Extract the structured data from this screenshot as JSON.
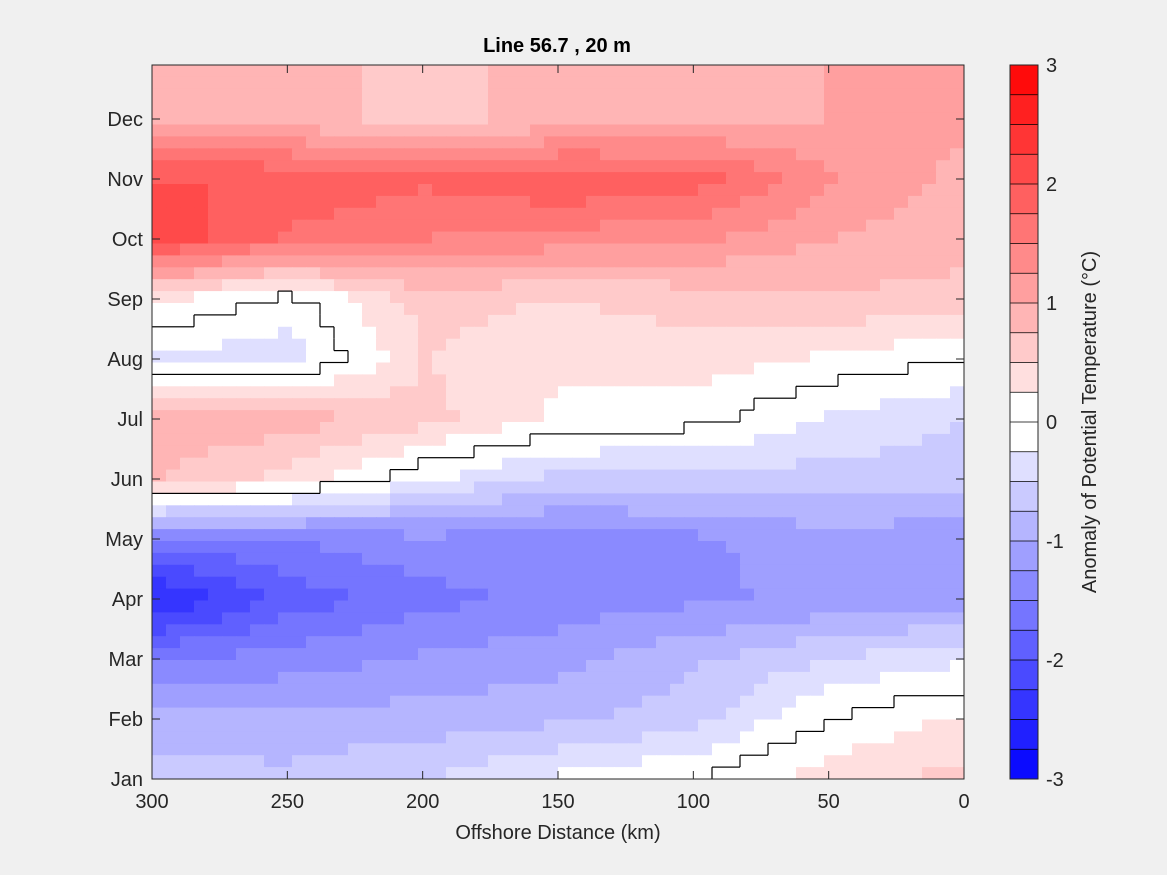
{
  "chart_data": {
    "type": "heatmap",
    "subtype": "filled-contour",
    "title": "Line 56.7 , 20 m",
    "xlabel": "Offshore Distance (km)",
    "ylabel": "",
    "x_reversed": true,
    "xlim": [
      0,
      300
    ],
    "x_ticks": [
      300,
      250,
      200,
      150,
      100,
      50,
      0
    ],
    "y_ticks": [
      "Jan",
      "Feb",
      "Mar",
      "Apr",
      "May",
      "Jun",
      "Jul",
      "Aug",
      "Sep",
      "Oct",
      "Nov",
      "Dec"
    ],
    "colorbar": {
      "label": "Anomaly of Potential Temperature (°C)",
      "range": [
        -3,
        3
      ],
      "step": 0.25,
      "ticks": [
        3,
        2,
        1,
        0,
        -1,
        -2,
        -3
      ],
      "color_negative": "#0000ff",
      "color_zero": "#ffffff",
      "color_positive": "#ff0000"
    },
    "zero_contour": true,
    "x": [
      300,
      250,
      200,
      150,
      100,
      50,
      0
    ],
    "months": [
      "Jan",
      "Feb",
      "Mar",
      "Apr",
      "May",
      "Jun",
      "Jul",
      "Aug",
      "Sep",
      "Oct",
      "Nov",
      "Dec"
    ],
    "z": [
      [
        -0.6,
        -0.7,
        -0.5,
        -0.2,
        0.0,
        0.4,
        0.6
      ],
      [
        -0.9,
        -0.9,
        -0.9,
        -0.8,
        -0.6,
        0.0,
        0.3
      ],
      [
        -1.5,
        -1.4,
        -1.2,
        -1.1,
        -0.8,
        -0.5,
        -0.3
      ],
      [
        -2.6,
        -1.9,
        -1.6,
        -1.4,
        -1.3,
        -1.2,
        -1.1
      ],
      [
        -1.6,
        -1.5,
        -1.3,
        -1.4,
        -1.3,
        -1.1,
        -1.2
      ],
      [
        0.8,
        0.4,
        -0.2,
        -0.6,
        -0.6,
        -0.6,
        -0.6
      ],
      [
        0.9,
        0.9,
        0.6,
        0.2,
        0.1,
        -0.3,
        -0.5
      ],
      [
        -0.3,
        -0.4,
        0.5,
        0.3,
        0.4,
        0.2,
        0.0
      ],
      [
        0.3,
        -0.1,
        0.6,
        0.5,
        0.6,
        0.7,
        0.7
      ],
      [
        2.2,
        1.7,
        1.5,
        1.4,
        1.3,
        1.0,
        0.8
      ],
      [
        2.0,
        2.0,
        1.8,
        2.0,
        1.9,
        1.3,
        0.9
      ],
      [
        1.0,
        0.8,
        0.7,
        0.8,
        0.9,
        1.0,
        1.1
      ]
    ]
  }
}
